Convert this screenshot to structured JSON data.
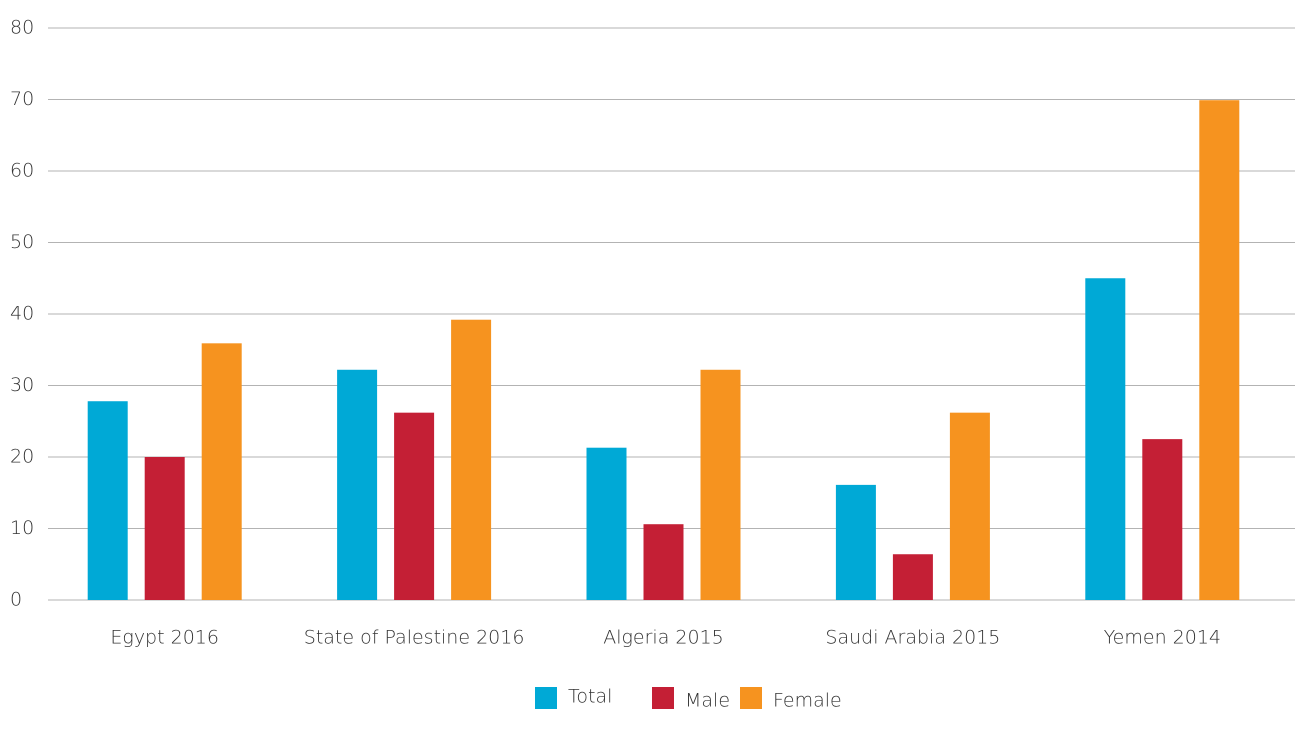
{
  "chart_data": {
    "type": "bar",
    "categories": [
      "Egypt 2016",
      "State of Palestine 2016",
      "Algeria 2015",
      "Saudi Arabia 2015",
      "Yemen 2014"
    ],
    "series": [
      {
        "name": "Total",
        "color": "#00a9d6",
        "values": [
          27.8,
          32.2,
          21.3,
          16.1,
          45.0
        ]
      },
      {
        "name": "Male",
        "color": "#c41f35",
        "values": [
          20.0,
          26.2,
          10.6,
          6.4,
          22.5
        ]
      },
      {
        "name": "Female",
        "color": "#f6931f",
        "values": [
          35.9,
          39.2,
          32.2,
          26.2,
          69.9
        ]
      }
    ],
    "ylim": [
      0,
      80
    ],
    "yticks": [
      0,
      10,
      20,
      30,
      40,
      50,
      60,
      70,
      80
    ],
    "grid": true,
    "legend": "bottom"
  }
}
